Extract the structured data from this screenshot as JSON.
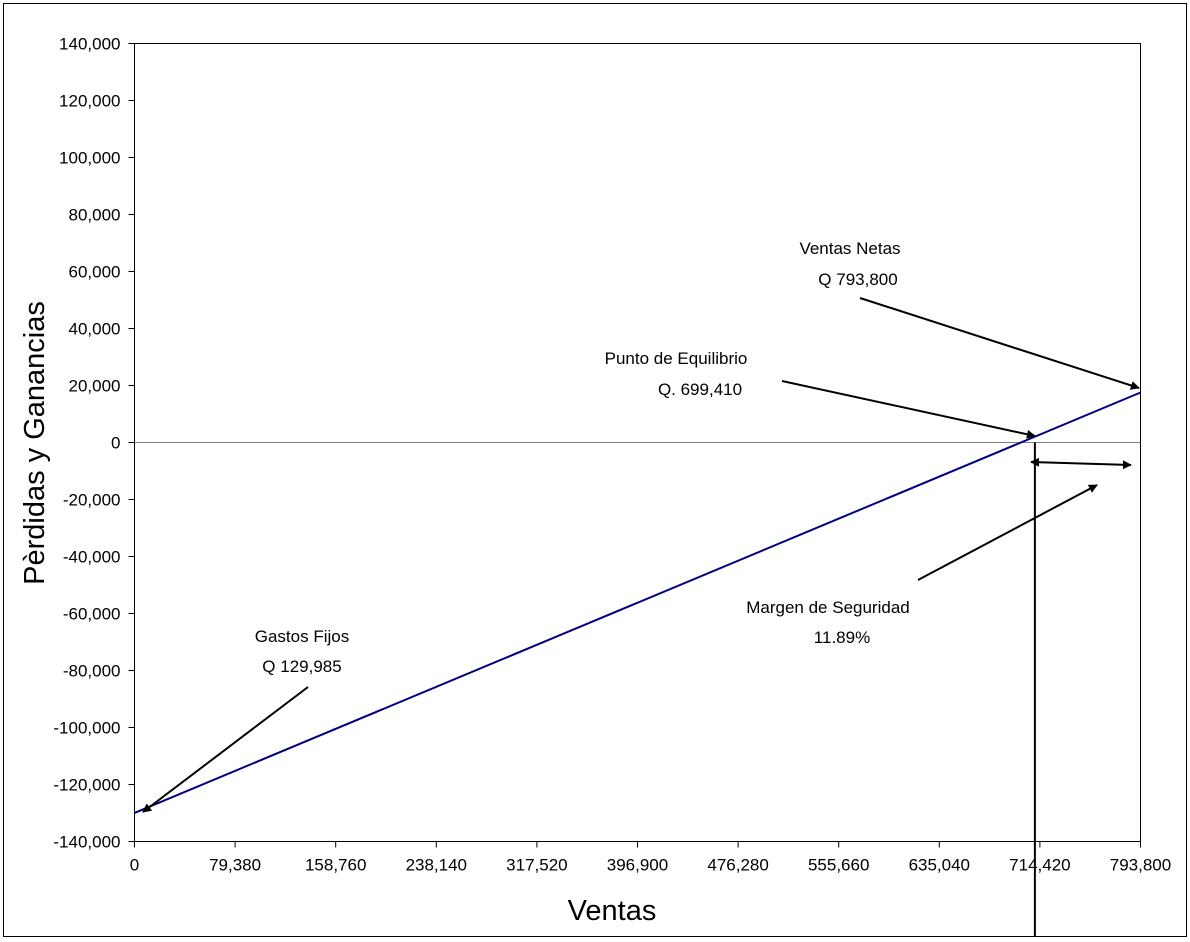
{
  "chart_data": {
    "type": "line",
    "title": "",
    "xlabel": "Ventas",
    "ylabel": "Pèrdidas  y  Ganancias",
    "xlim": [
      0,
      793800
    ],
    "ylim": [
      -140000,
      140000
    ],
    "x_ticks": [
      0,
      79380,
      158760,
      238140,
      317520,
      396900,
      476280,
      555660,
      635040,
      714420,
      793800
    ],
    "x_tick_labels": [
      "0",
      "79,380",
      "158,760",
      "238,140",
      "317,520",
      "396,900",
      "476,280",
      "555,660",
      "635,040",
      "714,420",
      "793,800"
    ],
    "y_ticks": [
      140000,
      120000,
      100000,
      80000,
      60000,
      40000,
      20000,
      0,
      -20000,
      -40000,
      -60000,
      -80000,
      -100000,
      -120000,
      -140000
    ],
    "y_tick_labels": [
      "140,000",
      "120,000",
      "100,000",
      "80,000",
      "60,000",
      "40,000",
      "20,000",
      "0",
      "-20,000",
      "-40,000",
      "-60,000",
      "-80,000",
      "-100,000",
      "-120,000",
      "-140,000"
    ],
    "grid": false,
    "legend": "none",
    "series": [
      {
        "x": [
          0,
          793800
        ],
        "y": [
          -129985,
          17540
        ],
        "color": "#000080"
      }
    ],
    "break_even_x": 699410,
    "annotations": [
      {
        "lines": [
          "Ventas Netas",
          "Q 793,800"
        ]
      },
      {
        "lines": [
          "Punto de Equilibrio",
          "Q. 699,410"
        ]
      },
      {
        "lines": [
          "Margen de Seguridad",
          "11.89%"
        ]
      },
      {
        "lines": [
          "Gastos Fijos",
          "Q 129,985"
        ]
      }
    ]
  }
}
